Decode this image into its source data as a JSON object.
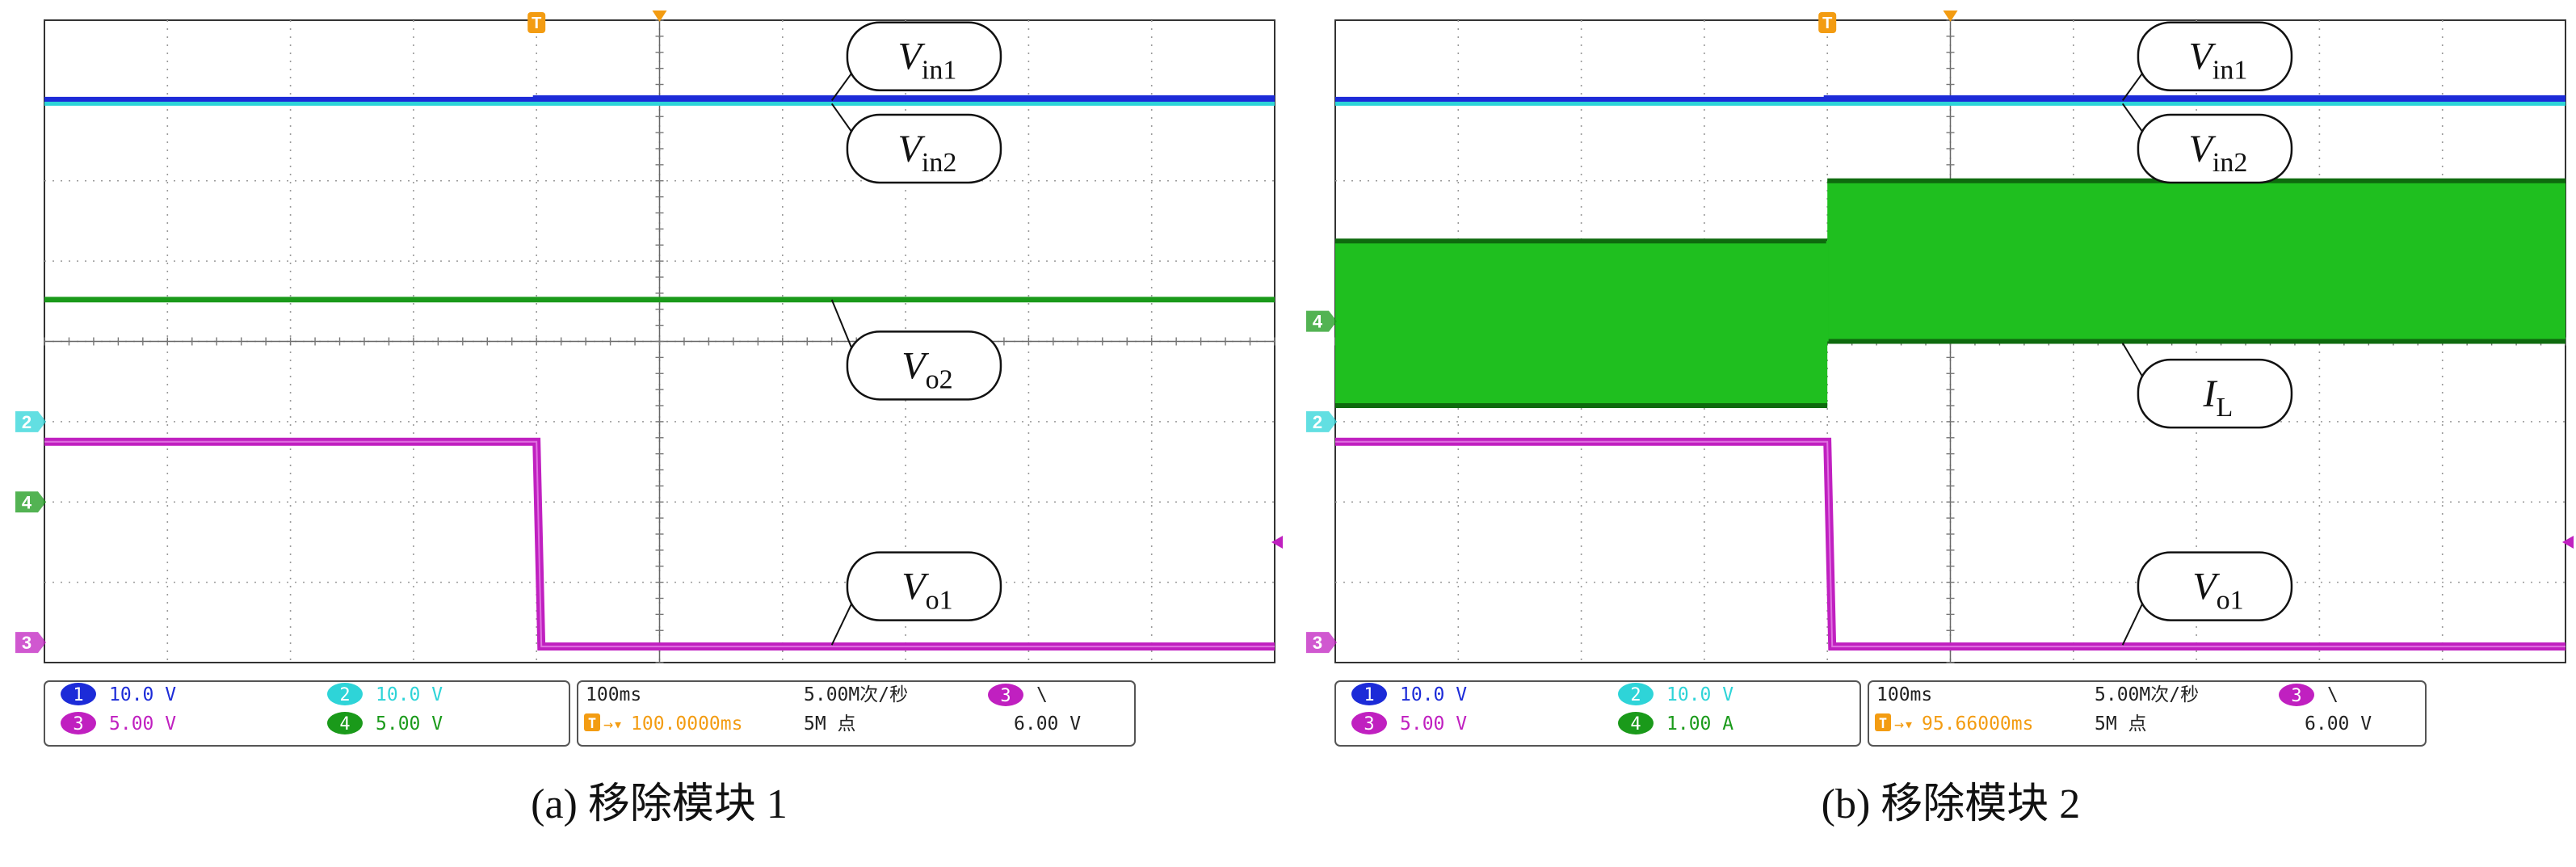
{
  "chart_data": [
    {
      "type": "line",
      "caption": "(a) 移除模块 1",
      "trigger_marker": "T",
      "x": {
        "divisions": 10,
        "time_per_div": "100ms",
        "trigger_position": 0.4,
        "step_at_div": 4.0
      },
      "y": {
        "divisions": 8,
        "range_div": [
          -4,
          4
        ]
      },
      "series": [
        {
          "key": "Vin1",
          "label": {
            "main": "V",
            "sub": "in1"
          },
          "channel": "1",
          "color": "#1c2bd8",
          "trace": "flat",
          "level_div": 3.0,
          "after_level_div": 3.02,
          "thickness_div": 0.09
        },
        {
          "key": "Vin2",
          "label": {
            "main": "V",
            "sub": "in2"
          },
          "channel": "2",
          "color": "#2ed4d8",
          "trace": "flat",
          "level_div": 2.96,
          "thickness_div": 0.05
        },
        {
          "key": "Vo2",
          "label": {
            "main": "V",
            "sub": "o2"
          },
          "channel": "4",
          "color": "#1a9a1a",
          "trace": "flat",
          "level_div": 0.52,
          "thickness_div": 0.07
        },
        {
          "key": "Vo1",
          "label": {
            "main": "V",
            "sub": "o1"
          },
          "channel": "3",
          "color": "#c020c0",
          "trace": "step",
          "level_div": -1.25,
          "after_level_div": -3.8,
          "thickness_div": 0.1
        }
      ],
      "label_callouts": [
        {
          "series": "Vin1",
          "x_div": 7.15,
          "y_div": 3.55,
          "to_x_div": 6.4,
          "to_y_div": 3.0
        },
        {
          "series": "Vin2",
          "x_div": 7.15,
          "y_div": 2.4,
          "to_x_div": 6.4,
          "to_y_div": 2.96
        },
        {
          "series": "Vo2",
          "x_div": 7.15,
          "y_div": -0.3,
          "to_x_div": 6.4,
          "to_y_div": 0.52
        },
        {
          "series": "Vo1",
          "x_div": 7.15,
          "y_div": -3.05,
          "to_x_div": 6.4,
          "to_y_div": -3.78
        }
      ],
      "ground_markers": [
        {
          "channel": "2",
          "color": "#2ed4d8",
          "y_div": -1.0
        },
        {
          "channel": "4",
          "color": "#1a9a1a",
          "y_div": -2.0
        },
        {
          "channel": "3",
          "color": "#c020c0",
          "y_div": -3.75
        }
      ],
      "status": {
        "channels": [
          {
            "num": "1",
            "value": "10.0 V",
            "color": "#1c2bd8"
          },
          {
            "num": "2",
            "value": "10.0 V",
            "color": "#2ed4d8"
          },
          {
            "num": "3",
            "value": "5.00 V",
            "color": "#c020c0"
          },
          {
            "num": "4",
            "value": "5.00 V",
            "color": "#1a9a1a"
          }
        ],
        "timebase": "100ms",
        "sample_rate": "5.00M次/秒",
        "trigger_channel": "3",
        "trigger_slope": "\\",
        "trigger_level": "6.00 V",
        "trigger_delay": "100.0000ms",
        "record_length": "5M 点"
      }
    },
    {
      "type": "line",
      "caption": "(b) 移除模块 2",
      "trigger_marker": "T",
      "x": {
        "divisions": 10,
        "time_per_div": "100ms",
        "trigger_position": 0.4,
        "step_at_div": 4.0
      },
      "y": {
        "divisions": 8,
        "range_div": [
          -4,
          4
        ]
      },
      "series": [
        {
          "key": "Vin1",
          "label": {
            "main": "V",
            "sub": "in1"
          },
          "channel": "1",
          "color": "#1c2bd8",
          "trace": "flat",
          "level_div": 3.0,
          "after_level_div": 3.02,
          "thickness_div": 0.09
        },
        {
          "key": "Vin2",
          "label": {
            "main": "V",
            "sub": "in2"
          },
          "channel": "2",
          "color": "#2ed4d8",
          "trace": "flat",
          "level_div": 2.96,
          "thickness_div": 0.05
        },
        {
          "key": "IL",
          "label": {
            "main": "I",
            "sub": "L"
          },
          "channel": "4",
          "color": "#1fbf1f",
          "trace": "band",
          "band_before_div": [
            -0.8,
            1.25
          ],
          "band_after_div": [
            0.0,
            2.0
          ]
        },
        {
          "key": "Vo1",
          "label": {
            "main": "V",
            "sub": "o1"
          },
          "channel": "3",
          "color": "#c020c0",
          "trace": "step",
          "level_div": -1.25,
          "after_level_div": -3.8,
          "thickness_div": 0.1
        }
      ],
      "label_callouts": [
        {
          "series": "Vin1",
          "x_div": 7.15,
          "y_div": 3.55,
          "to_x_div": 6.4,
          "to_y_div": 3.0
        },
        {
          "series": "Vin2",
          "x_div": 7.15,
          "y_div": 2.4,
          "to_x_div": 6.4,
          "to_y_div": 2.96
        },
        {
          "series": "IL",
          "x_div": 7.15,
          "y_div": -0.65,
          "to_x_div": 6.4,
          "to_y_div": -0.02
        },
        {
          "series": "Vo1",
          "x_div": 7.15,
          "y_div": -3.05,
          "to_x_div": 6.4,
          "to_y_div": -3.78
        }
      ],
      "ground_markers": [
        {
          "channel": "4",
          "color": "#1a9a1a",
          "y_div": 0.25
        },
        {
          "channel": "2",
          "color": "#2ed4d8",
          "y_div": -1.0
        },
        {
          "channel": "3",
          "color": "#c020c0",
          "y_div": -3.75
        }
      ],
      "status": {
        "channels": [
          {
            "num": "1",
            "value": "10.0 V",
            "color": "#1c2bd8"
          },
          {
            "num": "2",
            "value": "10.0 V",
            "color": "#2ed4d8"
          },
          {
            "num": "3",
            "value": "5.00 V",
            "color": "#c020c0"
          },
          {
            "num": "4",
            "value": "1.00 A",
            "color": "#1a9a1a"
          }
        ],
        "timebase": "100ms",
        "sample_rate": "5.00M次/秒",
        "trigger_channel": "3",
        "trigger_slope": "\\",
        "trigger_level": "6.00 V",
        "trigger_delay": "95.66000ms",
        "record_length": "5M 点"
      }
    }
  ]
}
